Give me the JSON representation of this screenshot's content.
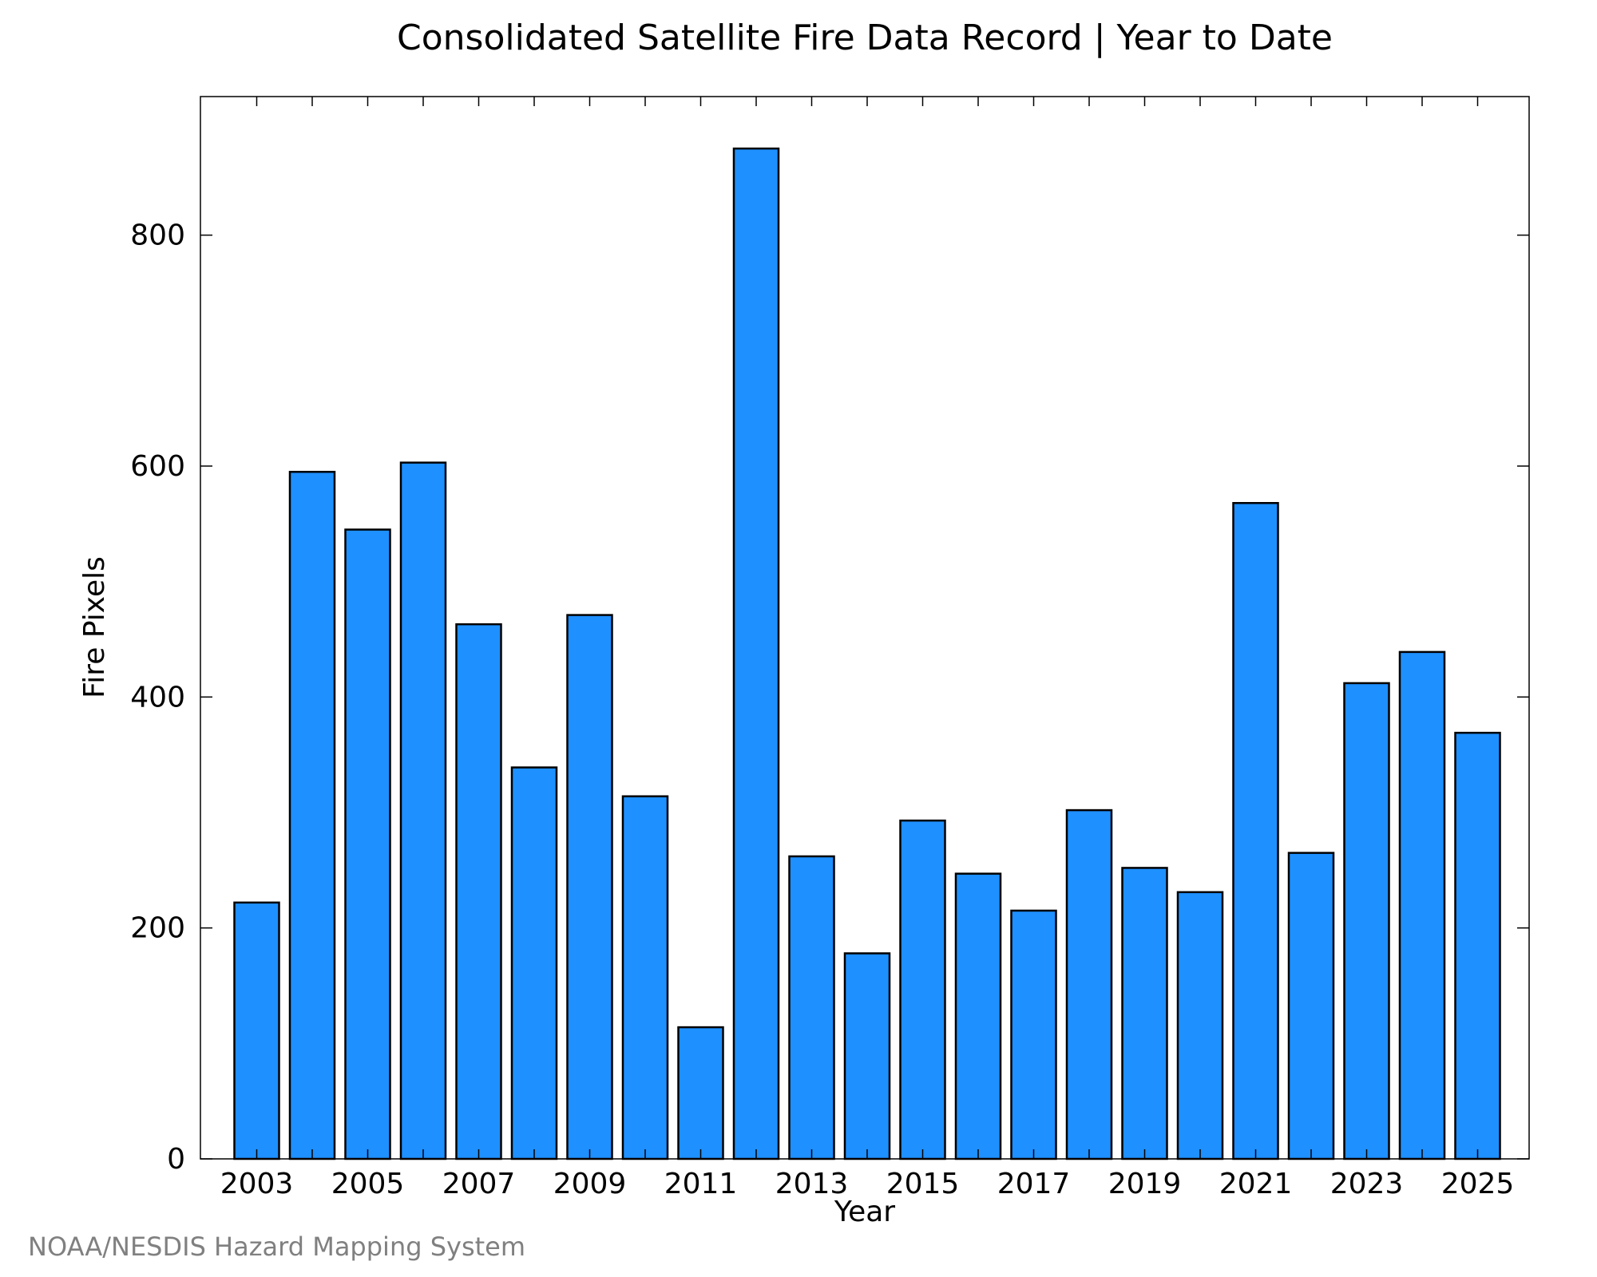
{
  "chart_data": {
    "type": "bar",
    "title": "Consolidated Satellite Fire Data Record | Year to Date",
    "xlabel": "Year",
    "ylabel": "Fire Pixels",
    "categories": [
      "2003",
      "2004",
      "2005",
      "2006",
      "2007",
      "2008",
      "2009",
      "2010",
      "2011",
      "2012",
      "2013",
      "2014",
      "2015",
      "2016",
      "2017",
      "2018",
      "2019",
      "2020",
      "2021",
      "2022",
      "2023",
      "2024",
      "2025"
    ],
    "x_tick_labels": [
      "2003",
      "2005",
      "2007",
      "2009",
      "2011",
      "2013",
      "2015",
      "2017",
      "2019",
      "2021",
      "2023",
      "2025"
    ],
    "values": [
      222,
      595,
      545,
      603,
      463,
      339,
      471,
      314,
      114,
      875,
      262,
      178,
      293,
      247,
      215,
      302,
      252,
      231,
      568,
      265,
      412,
      439,
      369
    ],
    "ylim": [
      0,
      920
    ],
    "y_ticks": [
      0,
      200,
      400,
      600,
      800
    ],
    "bar_color": "#1e90ff",
    "edge_color": "#000000",
    "grid": false,
    "legend": "none"
  },
  "footer": {
    "credit": "NOAA/NESDIS Hazard Mapping System"
  }
}
